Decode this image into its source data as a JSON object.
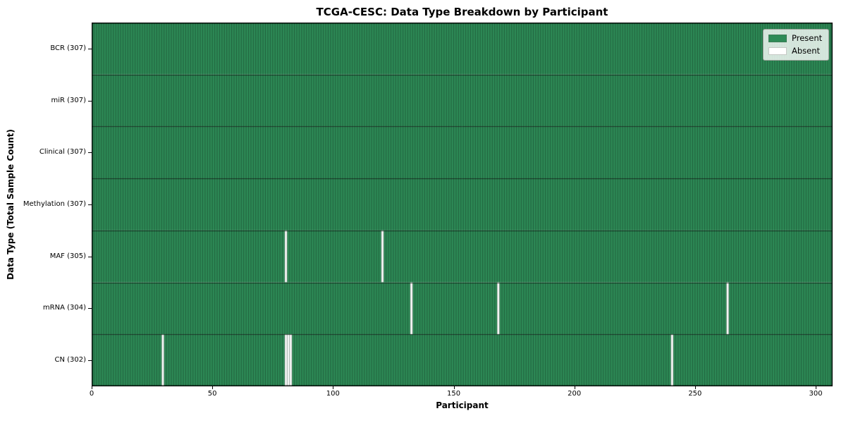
{
  "chart_data": {
    "type": "heatmap",
    "title": "TCGA-CESC: Data Type Breakdown by Participant",
    "xlabel": "Participant",
    "ylabel": "Data Type (Total Sample Count)",
    "n_participants": 307,
    "x_ticks": [
      0,
      50,
      100,
      150,
      200,
      250,
      300
    ],
    "x_range": [
      0,
      307
    ],
    "grid": false,
    "legend_position": "upper right",
    "rows": [
      {
        "label": "BCR (307)",
        "data_type": "BCR",
        "total_samples": 307,
        "absent_participants": []
      },
      {
        "label": "miR (307)",
        "data_type": "miR",
        "total_samples": 307,
        "absent_participants": []
      },
      {
        "label": "Clinical (307)",
        "data_type": "Clinical",
        "total_samples": 307,
        "absent_participants": []
      },
      {
        "label": "Methylation (307)",
        "data_type": "Methylation",
        "total_samples": 307,
        "absent_participants": []
      },
      {
        "label": "MAF (305)",
        "data_type": "MAF",
        "total_samples": 305,
        "absent_participants": [
          80,
          120
        ]
      },
      {
        "label": "mRNA (304)",
        "data_type": "mRNA",
        "total_samples": 304,
        "absent_participants": [
          132,
          168,
          263
        ]
      },
      {
        "label": "CN (302)",
        "data_type": "CN",
        "total_samples": 302,
        "absent_participants": [
          29,
          80,
          81,
          82,
          240
        ]
      }
    ],
    "legend": [
      {
        "label": "Present",
        "color": "#2E8B57"
      },
      {
        "label": "Absent",
        "color": "#FFFFFF"
      }
    ],
    "colors": {
      "present": "#2E8B57",
      "absent": "#FFFFFF",
      "edge": "rgba(0,0,0,0.55)",
      "row_divider": "rgba(0,0,0,0.65)",
      "frame": "#000000"
    }
  }
}
